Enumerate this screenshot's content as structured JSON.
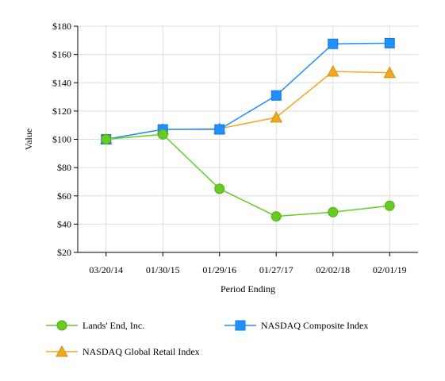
{
  "chart_data": {
    "type": "line",
    "xlabel": "Period Ending",
    "ylabel": "Value",
    "ylim": [
      20,
      180
    ],
    "y_ticks": [
      20,
      40,
      60,
      80,
      100,
      120,
      140,
      160,
      180
    ],
    "y_tick_labels": [
      "$20",
      "$40",
      "$60",
      "$80",
      "$100",
      "$120",
      "$140",
      "$160",
      "$180"
    ],
    "categories": [
      "03/20/14",
      "01/30/15",
      "01/29/16",
      "01/27/17",
      "02/02/18",
      "02/01/19"
    ],
    "grid": "vertical and horizontal",
    "legend_position": "bottom",
    "series": [
      {
        "name": "Lands' End, Inc.",
        "values": [
          100,
          103.5,
          65,
          45.5,
          48.5,
          53
        ],
        "color": "#66cc22",
        "marker": "circle"
      },
      {
        "name": "NASDAQ Composite Index",
        "values": [
          100,
          107,
          107,
          131,
          167.5,
          168
        ],
        "color": "#1e90ff",
        "marker": "square"
      },
      {
        "name": "NASDAQ Global Retail Index",
        "values": [
          100,
          107,
          107.5,
          115.5,
          148,
          147
        ],
        "color": "#f0a81e",
        "marker": "triangle"
      }
    ]
  }
}
